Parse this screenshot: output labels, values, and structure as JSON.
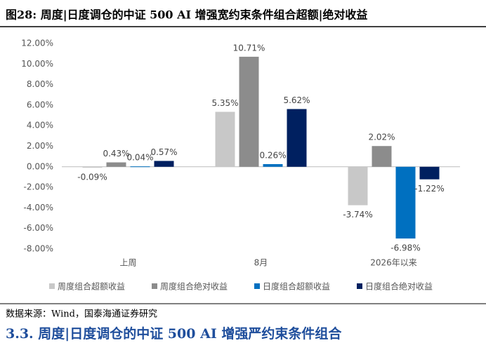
{
  "figure_title": "图28:  周度|日度调仓的中证 500 AI 增强宽约束条件组合超额|绝对收益",
  "chart_data": {
    "type": "bar",
    "categories": [
      "上周",
      "8月",
      "2026年以来"
    ],
    "series": [
      {
        "name": "周度组合超额收益",
        "color": "#c8c8c8",
        "values": [
          -0.09,
          5.35,
          -3.74
        ],
        "value_labels": [
          "-0.09%",
          "5.35%",
          "-3.74%"
        ]
      },
      {
        "name": "周度组合绝对收益",
        "color": "#8c8c8c",
        "values": [
          0.43,
          10.71,
          2.02
        ],
        "value_labels": [
          "0.43%",
          "10.71%",
          "2.02%"
        ]
      },
      {
        "name": "日度组合超额收益",
        "color": "#0070c0",
        "values": [
          0.04,
          0.26,
          -6.98
        ],
        "value_labels": [
          "0.04%",
          "0.26%",
          "-6.98%"
        ]
      },
      {
        "name": "日度组合绝对收益",
        "color": "#002060",
        "values": [
          0.57,
          5.62,
          -1.22
        ],
        "value_labels": [
          "0.57%",
          "5.62%",
          "-1.22%"
        ]
      }
    ],
    "ylim": [
      -8,
      12
    ],
    "yticks": [
      {
        "value": 12,
        "label": "12.00%"
      },
      {
        "value": 10,
        "label": "10.00%"
      },
      {
        "value": 8,
        "label": "8.00%"
      },
      {
        "value": 6,
        "label": "6.00%"
      },
      {
        "value": 4,
        "label": "4.00%"
      },
      {
        "value": 2,
        "label": "2.00%"
      },
      {
        "value": 0,
        "label": "0.00%"
      },
      {
        "value": -2,
        "label": "-2.00%"
      },
      {
        "value": -4,
        "label": "-4.00%"
      },
      {
        "value": -6,
        "label": "-6.00%"
      },
      {
        "value": -8,
        "label": "-8.00%"
      }
    ],
    "legend": "bottom"
  },
  "source": "数据来源：Wind，国泰海通证券研究",
  "section_heading": "3.3.   周度|日度调仓的中证 500 AI 增强严约束条件组合"
}
